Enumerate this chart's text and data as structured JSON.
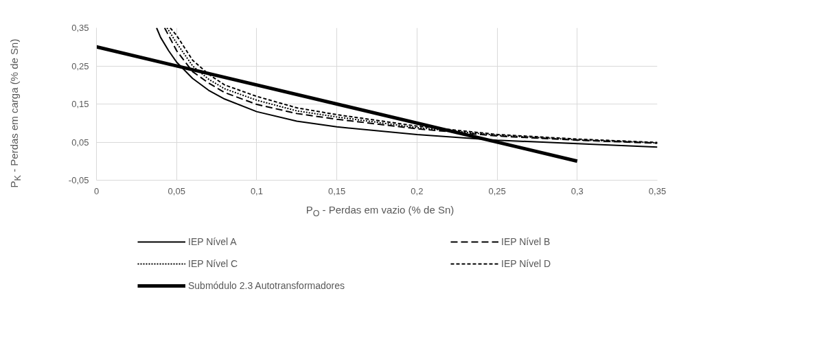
{
  "chart_data": {
    "type": "line",
    "xlabel": "P$_{O}$ - Perdas em vazio (% de Sn)",
    "ylabel": "P$_{K}$ - Perdas em carga (% de Sn)",
    "xlim": [
      0,
      0.35
    ],
    "ylim": [
      -0.05,
      0.35
    ],
    "xticks": [
      0,
      {
        "value": 0.05,
        "label": "0,05"
      },
      {
        "value": 0.1,
        "label": "0,1"
      },
      {
        "value": 0.15,
        "label": "0,15"
      },
      {
        "value": 0.2,
        "label": "0,2"
      },
      {
        "value": 0.25,
        "label": "0,25"
      },
      {
        "value": 0.3,
        "label": "0,3"
      },
      {
        "value": 0.35,
        "label": "0,35"
      }
    ],
    "yticks": [
      {
        "value": -0.05,
        "label": "-0,05"
      },
      {
        "value": 0.05,
        "label": "0,05"
      },
      {
        "value": 0.15,
        "label": "0,15"
      },
      {
        "value": 0.25,
        "label": "0,25"
      },
      {
        "value": 0.35,
        "label": "0,35"
      }
    ],
    "grid": true,
    "legend": "bottom",
    "marker": "none",
    "series": [
      {
        "name": "IEP Nível A",
        "color": "#000000",
        "line_style": "solid",
        "x": [
          0.0375,
          0.04,
          0.045,
          0.05,
          0.06,
          0.07,
          0.08,
          0.1,
          0.125,
          0.15,
          0.2,
          0.25,
          0.3,
          0.35
        ],
        "values": [
          0.35,
          0.325,
          0.29,
          0.26,
          0.217,
          0.186,
          0.163,
          0.13,
          0.105,
          0.09,
          0.07,
          0.055,
          0.046,
          0.037
        ]
      },
      {
        "name": "IEP Nível B",
        "color": "#000000",
        "line_style": "longdash",
        "x": [
          0.0425,
          0.05,
          0.06,
          0.07,
          0.08,
          0.1,
          0.125,
          0.15,
          0.2,
          0.25,
          0.3,
          0.35
        ],
        "values": [
          0.35,
          0.29,
          0.235,
          0.205,
          0.18,
          0.149,
          0.125,
          0.11,
          0.085,
          0.066,
          0.055,
          0.047
        ]
      },
      {
        "name": "IEP Nível C",
        "color": "#000000",
        "line_style": "dotted",
        "x": [
          0.044,
          0.05,
          0.06,
          0.07,
          0.08,
          0.1,
          0.125,
          0.15,
          0.2,
          0.25,
          0.3,
          0.35
        ],
        "values": [
          0.35,
          0.31,
          0.25,
          0.215,
          0.19,
          0.16,
          0.132,
          0.116,
          0.088,
          0.068,
          0.056,
          0.048
        ]
      },
      {
        "name": "IEP Nível D",
        "color": "#000000",
        "line_style": "dashed",
        "x": [
          0.046,
          0.05,
          0.06,
          0.07,
          0.08,
          0.1,
          0.125,
          0.15,
          0.2,
          0.25,
          0.3,
          0.35
        ],
        "values": [
          0.35,
          0.33,
          0.265,
          0.228,
          0.2,
          0.17,
          0.14,
          0.122,
          0.092,
          0.07,
          0.058,
          0.049
        ]
      },
      {
        "name": "Submódulo 2.3 Autotransformadores",
        "color": "#000000",
        "line_style": "solid",
        "x": [
          0,
          0.3
        ],
        "values": [
          0.3,
          0
        ]
      }
    ]
  }
}
